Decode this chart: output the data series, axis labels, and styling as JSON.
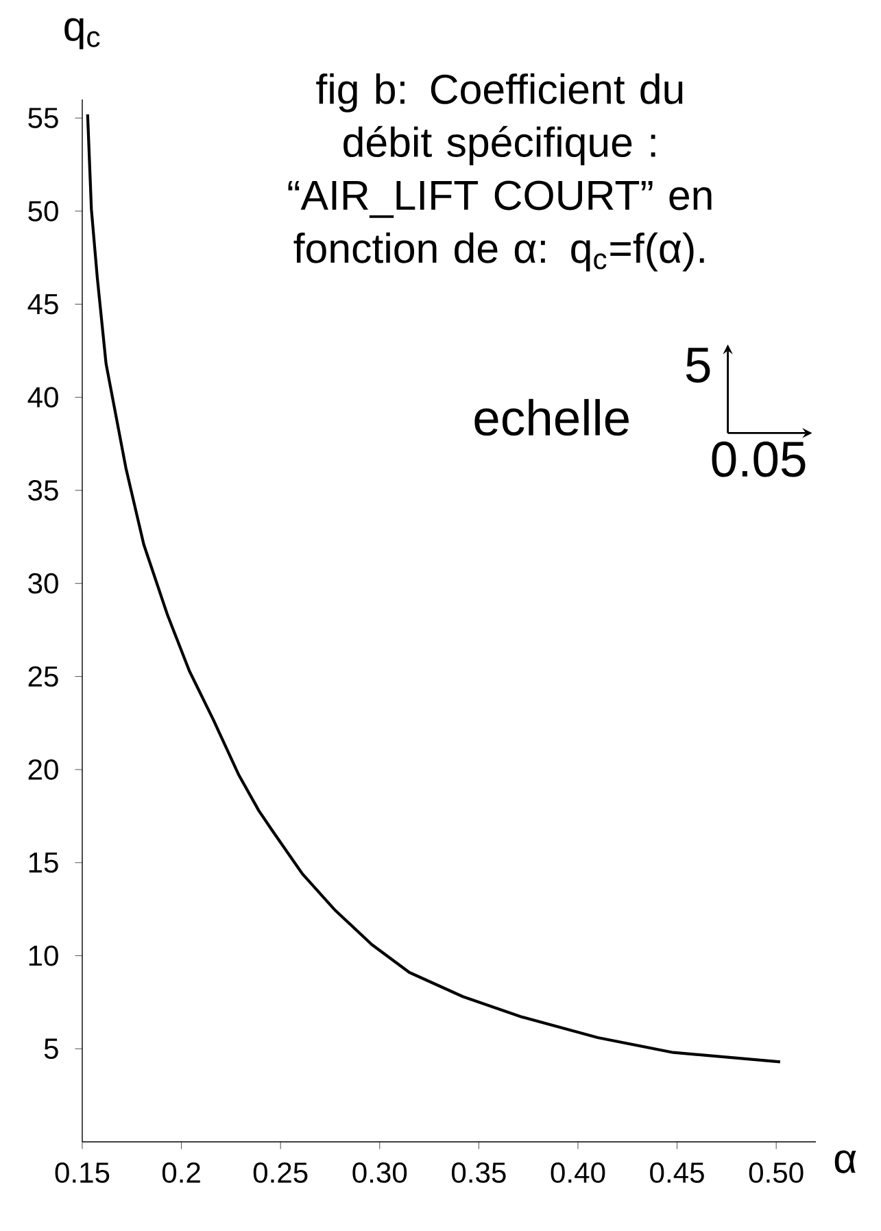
{
  "chart_data": {
    "type": "line",
    "title": "fig b: Coefficient du débit spécifique : “AIR_LIFT COURT” en fonction de α: q$_{c}$=f(α).",
    "xlabel": "α",
    "ylabel": "q$_{c}$",
    "annotations": [
      "echelle",
      "5",
      "0.05"
    ],
    "x": [
      0.1527,
      0.1546,
      0.1576,
      0.162,
      0.172,
      0.181,
      0.193,
      0.204,
      0.216,
      0.229,
      0.239,
      0.246,
      0.261,
      0.277,
      0.296,
      0.315,
      0.342,
      0.372,
      0.41,
      0.448,
      0.502
    ],
    "series": [
      {
        "color": "#000000",
        "values": [
          55.2,
          50.1,
          46.4,
          41.8,
          36.2,
          32.1,
          28.3,
          25.3,
          22.7,
          19.7,
          17.8,
          16.7,
          14.4,
          12.5,
          10.6,
          9.1,
          7.8,
          6.7,
          5.6,
          4.8,
          4.3
        ]
      }
    ],
    "xlim": [
      0.15,
      0.52
    ],
    "ylim": [
      0,
      56
    ],
    "xticks": [
      0.15,
      0.2,
      0.25,
      {
        "value": 0.3,
        "label": "0.30"
      },
      0.35,
      {
        "value": 0.4,
        "label": "0.40"
      },
      0.45,
      {
        "value": 0.5,
        "label": "0.50"
      }
    ],
    "yticks": [
      5,
      10,
      15,
      20,
      25,
      30,
      35,
      40,
      45,
      50,
      55
    ],
    "marker": "none",
    "line_style": "solid"
  }
}
